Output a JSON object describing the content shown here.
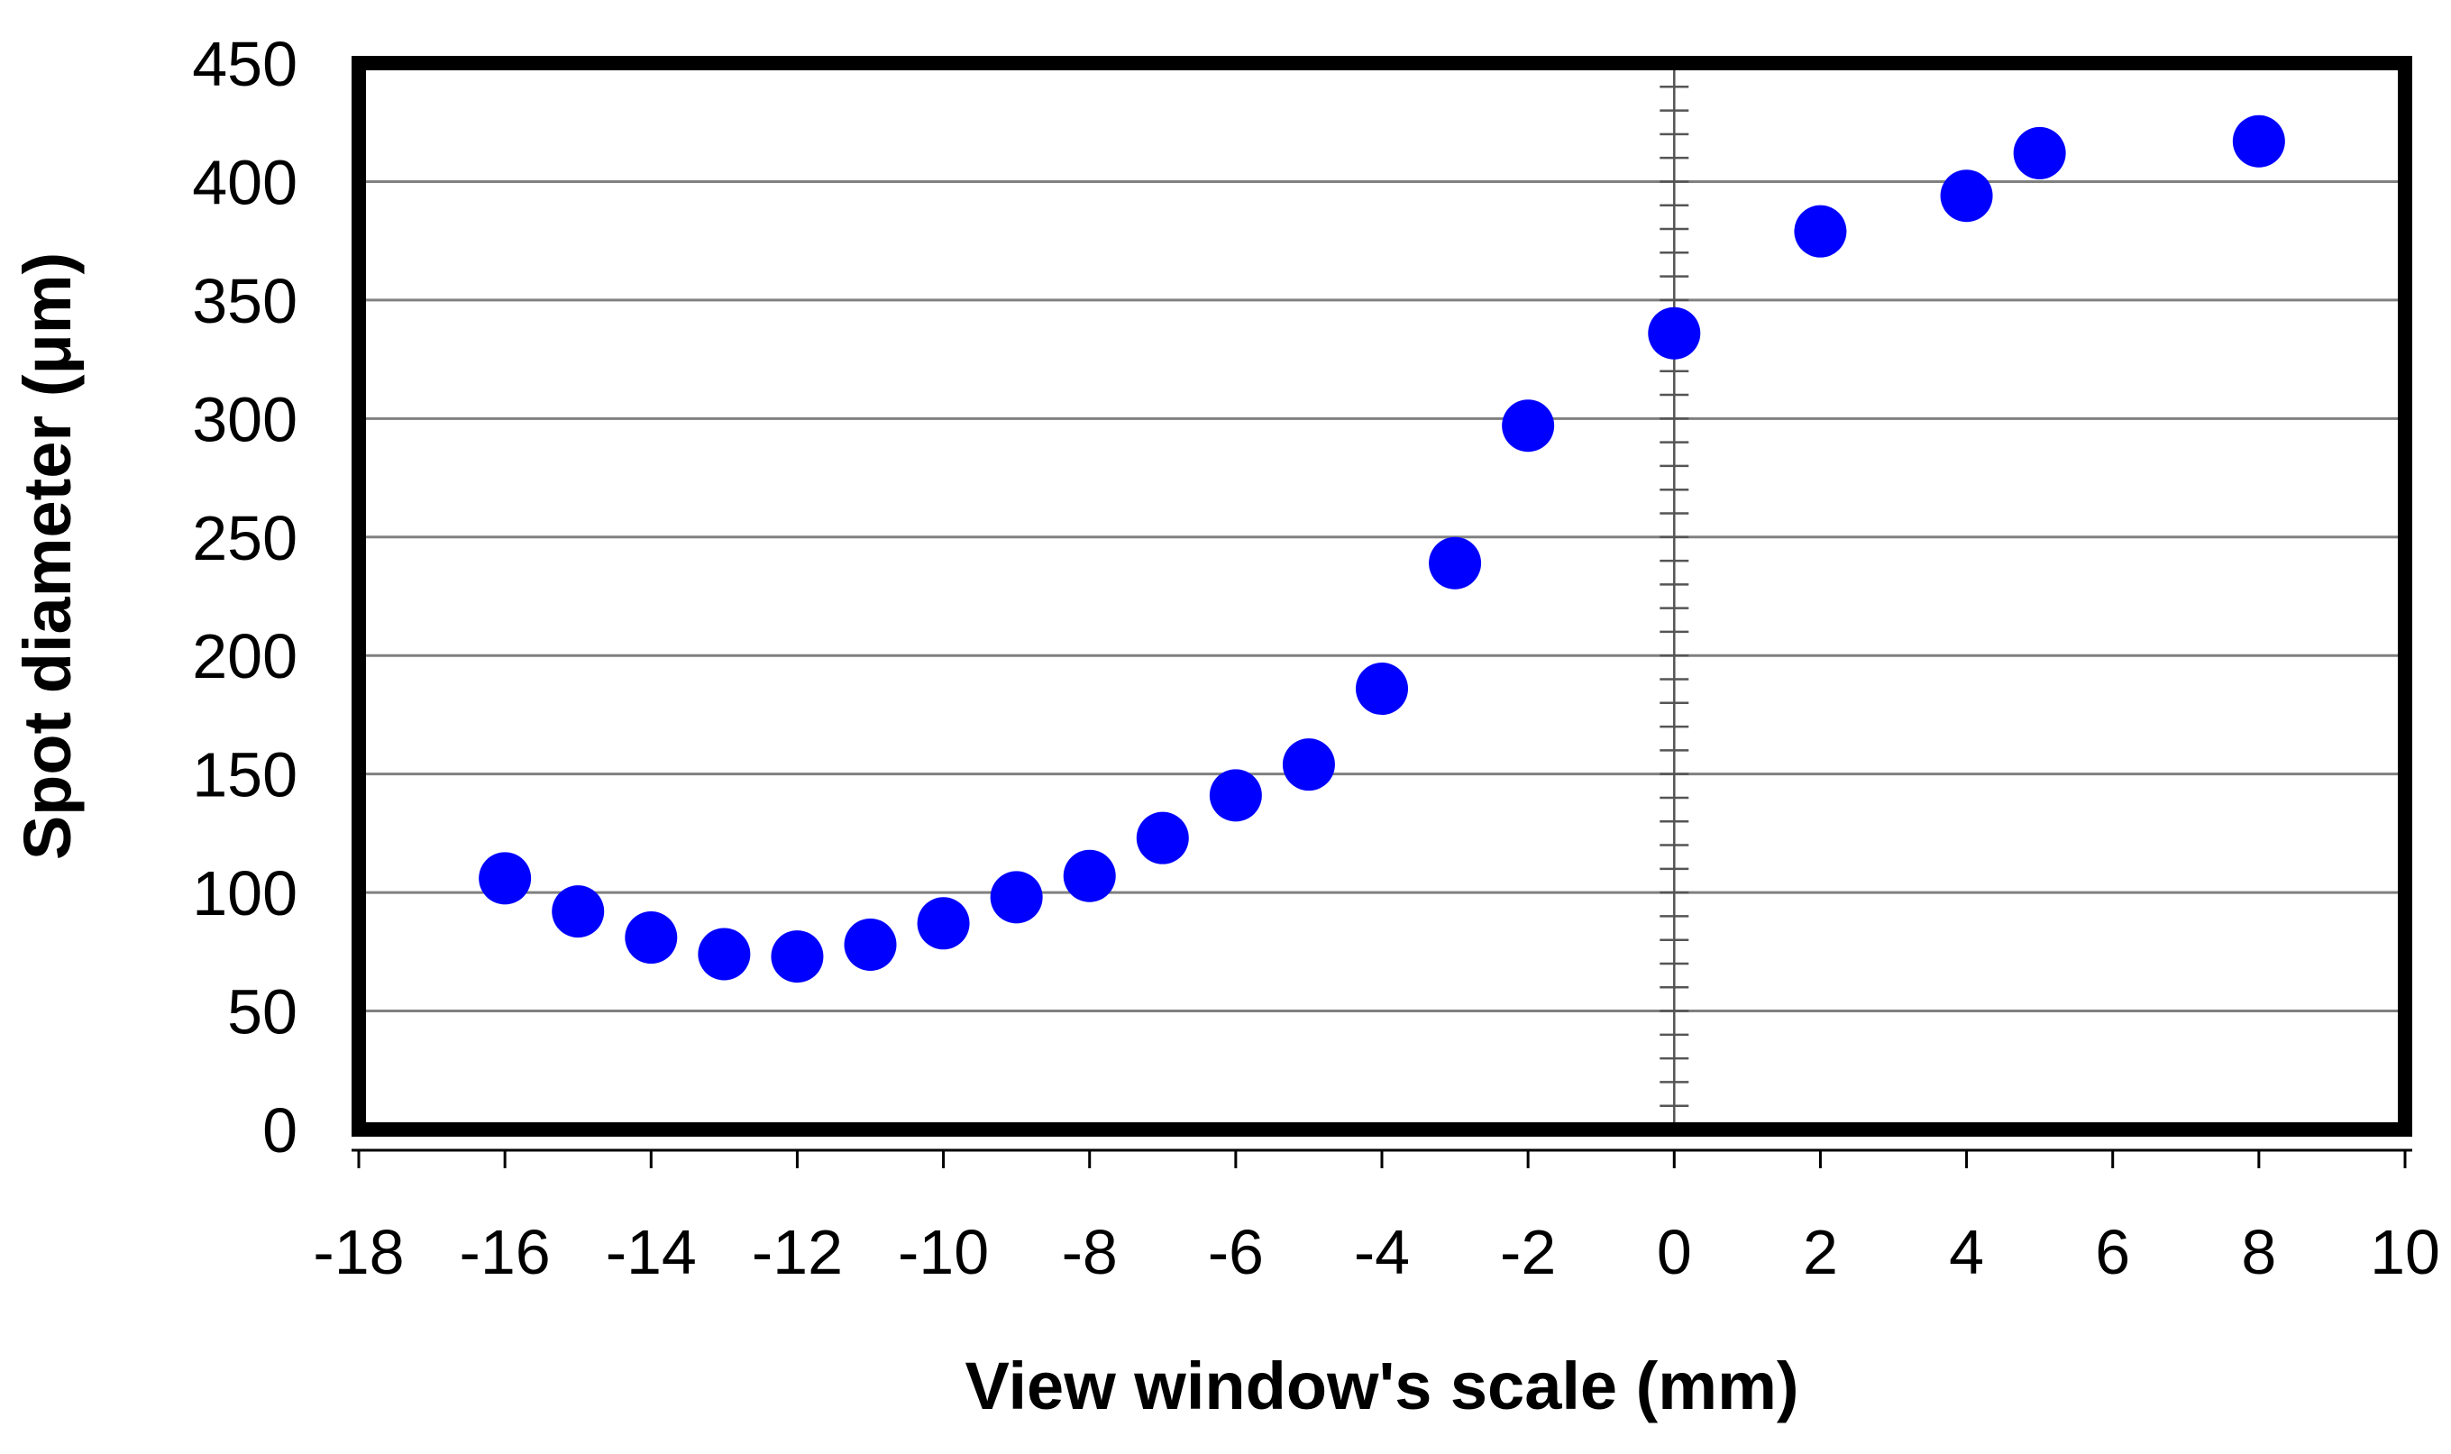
{
  "chart_data": {
    "type": "scatter",
    "title": "",
    "xlabel": "View window's scale (mm)",
    "ylabel": "Spot diameter (μm)",
    "xlim": [
      -18,
      10
    ],
    "ylim": [
      0,
      450
    ],
    "x_ticks": [
      -18,
      -16,
      -14,
      -12,
      -10,
      -8,
      -6,
      -4,
      -2,
      0,
      2,
      4,
      6,
      8,
      10
    ],
    "y_ticks": [
      0,
      50,
      100,
      150,
      200,
      250,
      300,
      350,
      400,
      450
    ],
    "x_tick_labels": [
      "-18",
      "-16",
      "-14",
      "-12",
      "-10",
      "-8",
      "-6",
      "-4",
      "-2",
      "0",
      "2",
      "4",
      "6",
      "8",
      "10"
    ],
    "y_tick_labels": [
      "0",
      "50",
      "100",
      "150",
      "200",
      "250",
      "300",
      "350",
      "400",
      "450"
    ],
    "grid": {
      "horizontal": true,
      "vertical": false
    },
    "zero_line": {
      "x": 0,
      "minor_tick_step": 10
    },
    "marker_color": "#0000ff",
    "series": [
      {
        "points": [
          {
            "x": -16,
            "y": 106
          },
          {
            "x": -15,
            "y": 92
          },
          {
            "x": -14,
            "y": 81
          },
          {
            "x": -13,
            "y": 74
          },
          {
            "x": -12,
            "y": 73
          },
          {
            "x": -11,
            "y": 78
          },
          {
            "x": -10,
            "y": 87
          },
          {
            "x": -9,
            "y": 98
          },
          {
            "x": -8,
            "y": 107
          },
          {
            "x": -7,
            "y": 123
          },
          {
            "x": -6,
            "y": 141
          },
          {
            "x": -5,
            "y": 154
          },
          {
            "x": -4,
            "y": 186
          },
          {
            "x": -3,
            "y": 239
          },
          {
            "x": -2,
            "y": 297
          },
          {
            "x": 0,
            "y": 336
          },
          {
            "x": 2,
            "y": 379
          },
          {
            "x": 4,
            "y": 394
          },
          {
            "x": 5,
            "y": 412
          },
          {
            "x": 8,
            "y": 417
          }
        ]
      }
    ]
  }
}
